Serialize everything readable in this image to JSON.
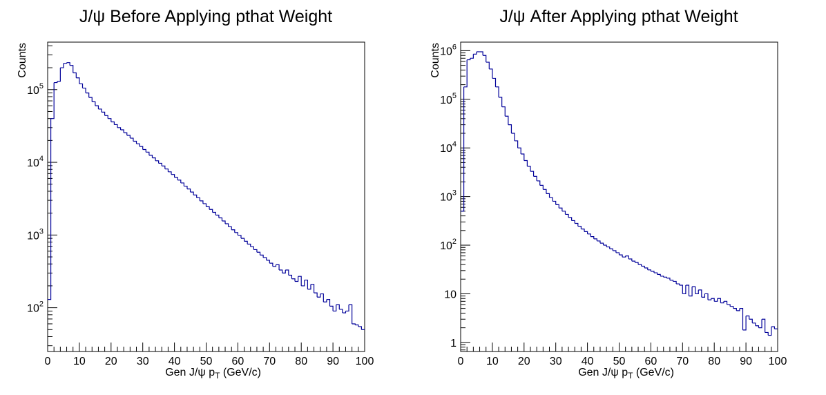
{
  "chart_data": [
    {
      "type": "histogram",
      "title": "J/ψ Before Applying pthat Weight",
      "xlabel": {
        "main": "Gen J/ψ p",
        "sub": "T",
        "unit": " (GeV/c)"
      },
      "ylabel": "Counts",
      "xlim": [
        0,
        100
      ],
      "ylim": [
        25,
        450000
      ],
      "log_y": true,
      "grid": false,
      "line_color": "#000099",
      "x_ticks": [
        "0",
        "10",
        "20",
        "30",
        "40",
        "50",
        "60",
        "70",
        "80",
        "90",
        "100"
      ],
      "y_ticks": [
        {
          "base": "10",
          "exp": "2",
          "value": 100
        },
        {
          "base": "10",
          "exp": "3",
          "value": 1000
        },
        {
          "base": "10",
          "exp": "4",
          "value": 10000
        },
        {
          "base": "10",
          "exp": "5",
          "value": 100000
        }
      ],
      "bin_width": 1,
      "values": [
        130,
        40000,
        125000,
        130000,
        200000,
        230000,
        235000,
        215000,
        170000,
        145000,
        120000,
        105000,
        90000,
        78000,
        68000,
        60000,
        54000,
        49000,
        44000,
        40000,
        36000,
        33000,
        30000,
        28000,
        25500,
        23500,
        21500,
        19500,
        18000,
        16500,
        15000,
        13800,
        12500,
        11500,
        10500,
        9700,
        8900,
        8100,
        7400,
        6800,
        6200,
        5700,
        5200,
        4700,
        4300,
        3900,
        3550,
        3250,
        2950,
        2700,
        2450,
        2250,
        2050,
        1880,
        1720,
        1560,
        1430,
        1300,
        1180,
        1080,
        990,
        900,
        820,
        750,
        690,
        630,
        580,
        530,
        490,
        450,
        410,
        370,
        390,
        330,
        300,
        330,
        280,
        250,
        230,
        270,
        200,
        240,
        180,
        210,
        160,
        140,
        155,
        120,
        130,
        105,
        90,
        110,
        95,
        85,
        90,
        110,
        60,
        58,
        55,
        50
      ]
    },
    {
      "type": "histogram",
      "title": "J/ψ After Applying pthat Weight",
      "xlabel": {
        "main": "Gen J/ψ p",
        "sub": "T",
        "unit": " (GeV/c)"
      },
      "ylabel": "Counts",
      "xlim": [
        0,
        100
      ],
      "ylim": [
        0.65,
        1500000
      ],
      "log_y": true,
      "grid": false,
      "line_color": "#000099",
      "x_ticks": [
        "0",
        "10",
        "20",
        "30",
        "40",
        "50",
        "60",
        "70",
        "80",
        "90",
        "100"
      ],
      "y_ticks": [
        {
          "base": "1",
          "exp": "",
          "value": 1
        },
        {
          "base": "10",
          "exp": "",
          "value": 10
        },
        {
          "base": "10",
          "exp": "2",
          "value": 100
        },
        {
          "base": "10",
          "exp": "3",
          "value": 1000
        },
        {
          "base": "10",
          "exp": "4",
          "value": 10000
        },
        {
          "base": "10",
          "exp": "5",
          "value": 100000
        },
        {
          "base": "10",
          "exp": "6",
          "value": 1000000
        }
      ],
      "bin_width": 1,
      "values": [
        500,
        180000,
        650000,
        700000,
        850000,
        950000,
        950000,
        800000,
        580000,
        420000,
        270000,
        180000,
        110000,
        70000,
        45000,
        30000,
        20000,
        14000,
        10000,
        7500,
        5500,
        4200,
        3300,
        2600,
        2100,
        1700,
        1400,
        1150,
        950,
        800,
        680,
        580,
        500,
        430,
        370,
        320,
        280,
        245,
        215,
        190,
        170,
        150,
        135,
        122,
        110,
        100,
        92,
        84,
        77,
        70,
        63,
        57,
        60,
        52,
        47,
        44,
        40,
        37,
        34,
        31,
        29,
        27,
        25,
        23,
        22,
        21,
        19,
        18,
        16,
        15,
        10,
        15,
        9,
        14,
        10,
        12,
        8.5,
        10,
        7.5,
        8,
        7,
        8,
        6.5,
        7,
        6,
        5.5,
        5,
        4.5,
        5,
        1.8,
        3.5,
        3,
        2.5,
        2.2,
        2,
        3,
        1.6,
        1.4,
        2.1,
        1.9
      ]
    }
  ]
}
